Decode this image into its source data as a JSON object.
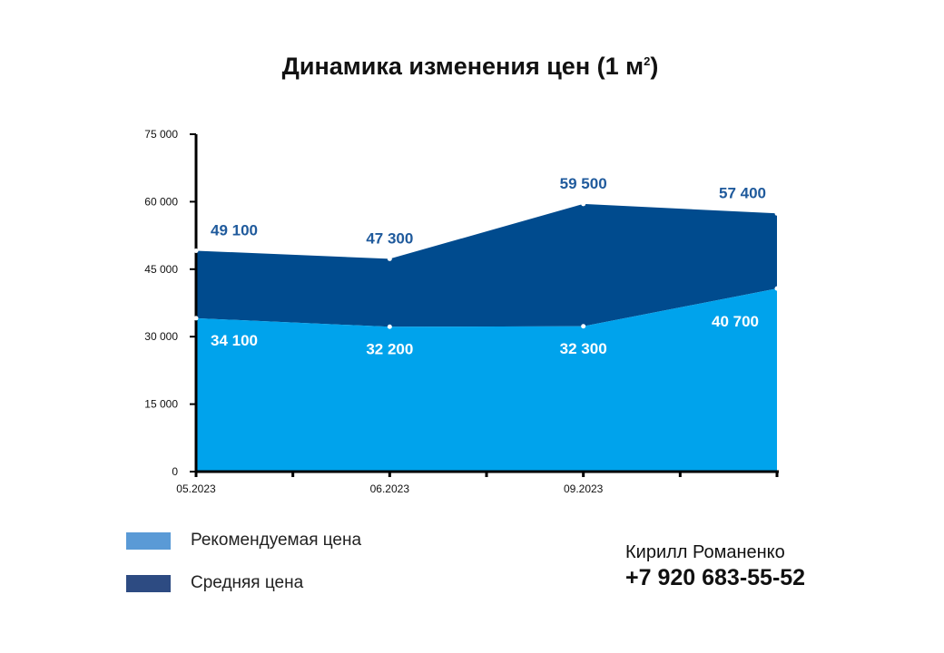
{
  "chart_data": {
    "type": "area",
    "title": "Динамика изменения цен (1 м",
    "title_sup": "2",
    "title_end": ")",
    "x": [
      "05.2023",
      "06.2023",
      "09.2023",
      ""
    ],
    "x_tick_labels": [
      "05.2023",
      "06.2023",
      "09.2023"
    ],
    "ylim": [
      0,
      75000
    ],
    "y_ticks": [
      0,
      15000,
      30000,
      45000,
      60000,
      75000
    ],
    "y_tick_labels": [
      "0",
      "15 000",
      "30 000",
      "45 000",
      "60 000",
      "75 000"
    ],
    "series": [
      {
        "name": "Рекомендуемая цена",
        "values": [
          34100,
          32200,
          32300,
          40700
        ],
        "labels": [
          "34 100",
          "32 200",
          "32 300",
          "40 700"
        ],
        "color": "#00a3ec",
        "legend_color": "#5a9ad6",
        "label_color": "#ffffff"
      },
      {
        "name": "Средняя цена",
        "values": [
          49100,
          47300,
          59500,
          57400
        ],
        "labels": [
          "49 100",
          "47 300",
          "59 500",
          "57 400"
        ],
        "color": "#004b8e",
        "legend_color": "#2d4b82",
        "label_color": "#1f5a9c"
      }
    ],
    "grid": false,
    "legend_position": "bottom-left"
  },
  "contact": {
    "name": "Кирилл Романенко",
    "phone": "+7 920 683-55-52"
  }
}
